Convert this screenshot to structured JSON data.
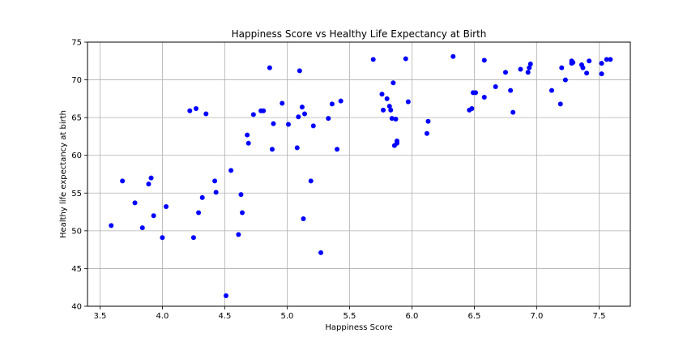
{
  "chart_data": {
    "type": "scatter",
    "title": "Happiness Score vs Healthy Life Expectancy at Birth",
    "xlabel": "Happiness Score",
    "ylabel": "Healthy life expectancy at birth",
    "xlim": [
      3.4,
      7.75
    ],
    "ylim": [
      40,
      75
    ],
    "xticks": [
      3.5,
      4.0,
      4.5,
      5.0,
      5.5,
      6.0,
      6.5,
      7.0,
      7.5
    ],
    "xtick_labels": [
      "3.5",
      "4.0",
      "4.5",
      "5.0",
      "5.5",
      "6.0",
      "6.5",
      "7.0",
      "7.5"
    ],
    "yticks": [
      40,
      45,
      50,
      55,
      60,
      65,
      70,
      75
    ],
    "ytick_labels": [
      "40",
      "45",
      "50",
      "55",
      "60",
      "65",
      "70",
      "75"
    ],
    "grid": true,
    "marker_color": "#0000ff",
    "points": [
      [
        3.59,
        50.7
      ],
      [
        3.68,
        56.6
      ],
      [
        3.78,
        53.7
      ],
      [
        3.84,
        50.4
      ],
      [
        3.89,
        56.2
      ],
      [
        3.91,
        57.0
      ],
      [
        3.93,
        52.0
      ],
      [
        4.0,
        49.1
      ],
      [
        4.03,
        53.2
      ],
      [
        4.22,
        65.9
      ],
      [
        4.25,
        49.1
      ],
      [
        4.27,
        66.2
      ],
      [
        4.29,
        52.4
      ],
      [
        4.32,
        54.4
      ],
      [
        4.35,
        65.5
      ],
      [
        4.42,
        56.6
      ],
      [
        4.43,
        55.1
      ],
      [
        4.51,
        41.4
      ],
      [
        4.55,
        58.0
      ],
      [
        4.61,
        49.5
      ],
      [
        4.63,
        54.8
      ],
      [
        4.64,
        52.4
      ],
      [
        4.68,
        62.7
      ],
      [
        4.69,
        61.6
      ],
      [
        4.73,
        65.4
      ],
      [
        4.79,
        65.9
      ],
      [
        4.81,
        65.9
      ],
      [
        4.86,
        71.6
      ],
      [
        4.88,
        60.8
      ],
      [
        4.89,
        64.2
      ],
      [
        4.96,
        66.9
      ],
      [
        5.01,
        64.1
      ],
      [
        5.08,
        61.0
      ],
      [
        5.09,
        65.1
      ],
      [
        5.1,
        71.2
      ],
      [
        5.12,
        66.4
      ],
      [
        5.13,
        51.6
      ],
      [
        5.14,
        65.5
      ],
      [
        5.19,
        56.6
      ],
      [
        5.21,
        63.9
      ],
      [
        5.27,
        47.1
      ],
      [
        5.33,
        64.9
      ],
      [
        5.36,
        66.8
      ],
      [
        5.4,
        60.8
      ],
      [
        5.43,
        67.2
      ],
      [
        5.69,
        72.7
      ],
      [
        5.76,
        68.1
      ],
      [
        5.77,
        66.0
      ],
      [
        5.8,
        67.5
      ],
      [
        5.82,
        66.5
      ],
      [
        5.83,
        66.0
      ],
      [
        5.84,
        64.9
      ],
      [
        5.85,
        69.6
      ],
      [
        5.86,
        61.3
      ],
      [
        5.87,
        64.8
      ],
      [
        5.88,
        61.9
      ],
      [
        5.88,
        61.6
      ],
      [
        5.95,
        72.8
      ],
      [
        5.97,
        67.1
      ],
      [
        6.12,
        62.9
      ],
      [
        6.13,
        64.5
      ],
      [
        6.33,
        73.1
      ],
      [
        6.46,
        66.0
      ],
      [
        6.48,
        66.2
      ],
      [
        6.49,
        68.3
      ],
      [
        6.51,
        68.3
      ],
      [
        6.58,
        72.6
      ],
      [
        6.58,
        67.7
      ],
      [
        6.67,
        69.1
      ],
      [
        6.75,
        71.0
      ],
      [
        6.79,
        68.6
      ],
      [
        6.81,
        65.7
      ],
      [
        6.87,
        71.4
      ],
      [
        6.93,
        71.0
      ],
      [
        6.94,
        71.6
      ],
      [
        6.95,
        72.1
      ],
      [
        7.12,
        68.6
      ],
      [
        7.19,
        66.8
      ],
      [
        7.2,
        71.6
      ],
      [
        7.23,
        70.0
      ],
      [
        7.28,
        72.5
      ],
      [
        7.28,
        72.2
      ],
      [
        7.29,
        72.3
      ],
      [
        7.36,
        72.0
      ],
      [
        7.37,
        71.6
      ],
      [
        7.4,
        70.9
      ],
      [
        7.42,
        72.5
      ],
      [
        7.52,
        72.2
      ],
      [
        7.52,
        70.8
      ],
      [
        7.56,
        72.7
      ],
      [
        7.59,
        72.7
      ]
    ]
  }
}
